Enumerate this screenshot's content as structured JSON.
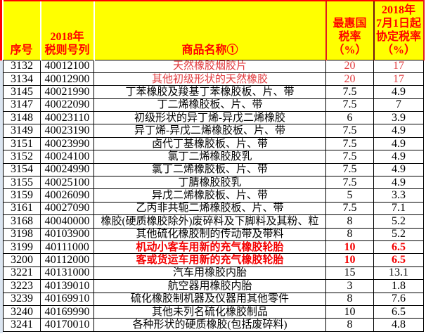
{
  "colors": {
    "header_bg": "#ffff00",
    "header_text": "#ff0000",
    "grid_line": "#000000",
    "outer_border_red": "#ff0000",
    "left_gutter_blue": "#dbe5f1",
    "highlight_red": "#e23b3e",
    "highlight_red_bold": "#f40000"
  },
  "table": {
    "columns": [
      {
        "key": "no",
        "label": "序号"
      },
      {
        "key": "code",
        "label": "2018年\n税则号列"
      },
      {
        "key": "name",
        "label": "商品名称①"
      },
      {
        "key": "mfn",
        "label": "最惠国\n税率\n（%）"
      },
      {
        "key": "agreement",
        "label": "2018年\n7月1日起\n协定税率\n（%）"
      }
    ],
    "rows": [
      {
        "no": "3132",
        "code": "40012100",
        "name": "天然橡胶烟胶片",
        "mfn": "20",
        "agreement": "17",
        "style": "red"
      },
      {
        "no": "3134",
        "code": "40012900",
        "name": "其他初级形状的天然橡胶",
        "mfn": "20",
        "agreement": "17",
        "style": "red"
      },
      {
        "no": "3145",
        "code": "40021990",
        "name": "丁苯橡胶及羧基丁苯橡胶板、片、带",
        "mfn": "7.5",
        "agreement": "4.9"
      },
      {
        "no": "3147",
        "code": "40022090",
        "name": "丁二烯橡胶板、片、带",
        "mfn": "7.5",
        "agreement": "7"
      },
      {
        "no": "3148",
        "code": "40023110",
        "name": "初级形状的异丁烯-异戊二烯橡胶",
        "mfn": "6",
        "agreement": "3.9"
      },
      {
        "no": "3149",
        "code": "40023190",
        "name": "异丁烯-异戊二烯橡胶板、片、带",
        "mfn": "7.5",
        "agreement": "4.9"
      },
      {
        "no": "3151",
        "code": "40023990",
        "name": "卤代丁基橡胶板、片、带",
        "mfn": "7.5",
        "agreement": "4.9"
      },
      {
        "no": "3152",
        "code": "40024100",
        "name": "氯丁二烯橡胶胶乳",
        "mfn": "7.5",
        "agreement": "4.9"
      },
      {
        "no": "3154",
        "code": "40024990",
        "name": "氯丁二烯橡胶板、片、带",
        "mfn": "7.5",
        "agreement": "4.9"
      },
      {
        "no": "3155",
        "code": "40025100",
        "name": "丁腈橡胶胶乳",
        "mfn": "7.5",
        "agreement": "4.9"
      },
      {
        "no": "3159",
        "code": "40026090",
        "name": "异戊二烯橡胶板、片、带",
        "mfn": "5",
        "agreement": "3.3"
      },
      {
        "no": "3161",
        "code": "40027090",
        "name": "乙丙非共轭二烯橡胶板、片、带",
        "mfn": "7.5",
        "agreement": "7.1"
      },
      {
        "no": "3168",
        "code": "40040000",
        "name": "橡胶(硬质橡胶除外)废碎料及下脚料及其粉、粒",
        "mfn": "8",
        "agreement": "5.2"
      },
      {
        "no": "3198",
        "code": "40103900",
        "name": "其他硫化橡胶制的传动带及带料",
        "mfn": "8",
        "agreement": "5.2"
      },
      {
        "no": "3199",
        "code": "40111000",
        "name": "机动小客车用新的充气橡胶轮胎",
        "mfn": "10",
        "agreement": "6.5",
        "style": "red-bold"
      },
      {
        "no": "3200",
        "code": "40112000",
        "name": "客或货运车用新的充气橡胶轮胎",
        "mfn": "10",
        "agreement": "6.5",
        "style": "red-bold"
      },
      {
        "no": "3221",
        "code": "40131000",
        "name": "汽车用橡胶内胎",
        "mfn": "15",
        "agreement": "13.1"
      },
      {
        "no": "3223",
        "code": "40139010",
        "name": "航空器用橡胶内胎",
        "mfn": "3",
        "agreement": "1.8"
      },
      {
        "no": "3239",
        "code": "40169910",
        "name": "硫化橡胶制机器及仪器用其他零件",
        "mfn": "8",
        "agreement": "7.6"
      },
      {
        "no": "3240",
        "code": "40169990",
        "name": "其他未列名硫化橡胶制品",
        "mfn": "10",
        "agreement": "6.5"
      },
      {
        "no": "3241",
        "code": "40170010",
        "name": "各种形状的硬质橡胶(包括废碎料)",
        "mfn": "8",
        "agreement": "4.8"
      }
    ]
  }
}
